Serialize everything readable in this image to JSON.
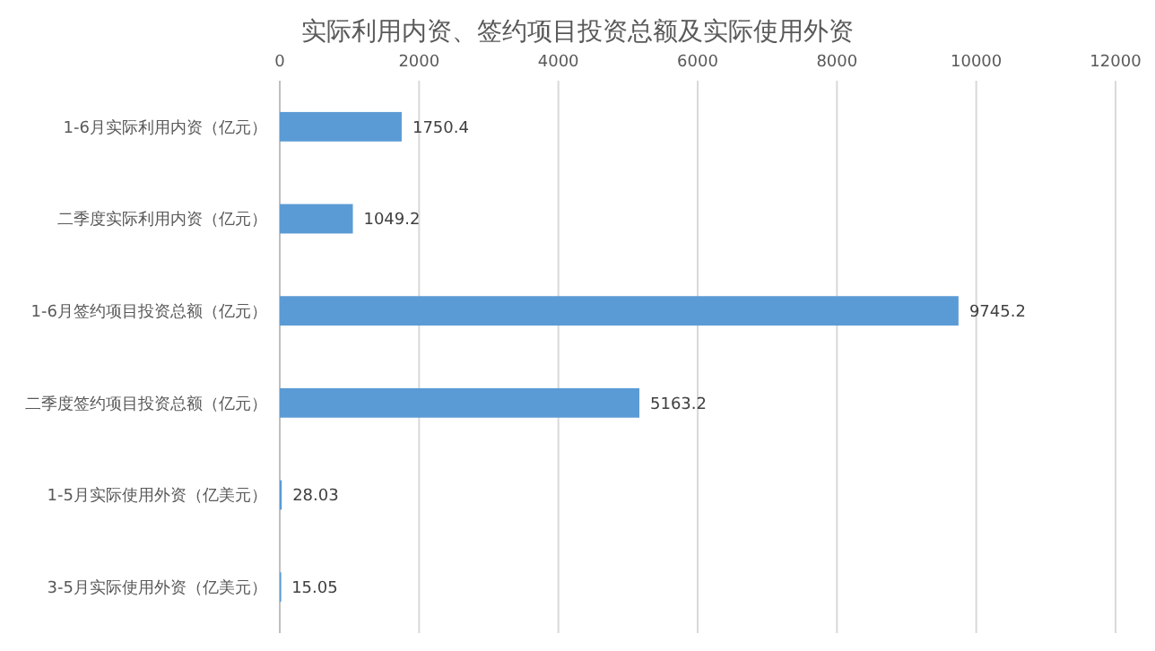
{
  "chart_data": {
    "type": "bar",
    "orientation": "horizontal",
    "title": "实际利用内资、签约项目投资总额及实际使用外资",
    "categories": [
      "1-6月实际利用内资（亿元）",
      "二季度实际利用内资（亿元）",
      "1-6月签约项目投资总额（亿元）",
      "二季度签约项目投资总额（亿元）",
      "1-5月实际使用外资（亿美元）",
      "3-5月实际使用外资（亿美元）"
    ],
    "values": [
      1750.4,
      1049.2,
      9745.2,
      5163.2,
      28.03,
      15.05
    ],
    "color": "#5b9bd5",
    "xlim": [
      0,
      12000
    ],
    "xticks": [
      0,
      2000,
      4000,
      6000,
      8000,
      10000,
      12000
    ],
    "grid": "x",
    "data_labels": true
  }
}
